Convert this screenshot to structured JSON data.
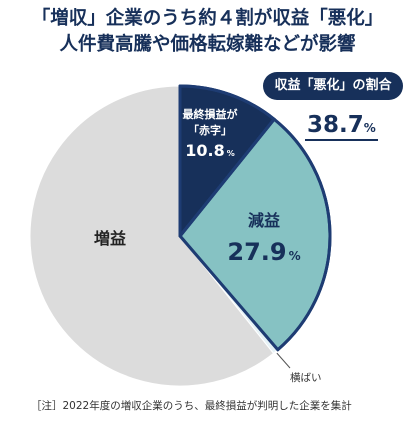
{
  "title_line1": "「増収」企業のうち約４割が収益「悪化」",
  "title_line2": "人件費高騰や価格転嫁難などが影響",
  "badge": "収益「悪化」の割合",
  "deterioration_share": {
    "value": "38.7",
    "unit": "%"
  },
  "footnote": "［注］2022年度の増収企業のうち、最終損益が判明した企業を集計",
  "colors": {
    "navy": "#17305a",
    "teal": "#86c2c3",
    "gray": "#dcdcdc",
    "outline": "#1e3c73"
  },
  "chart_data": {
    "type": "pie",
    "unit": "%",
    "slices": [
      {
        "label": "最終損益が「赤字」",
        "label_lines": [
          "最終損益が",
          "「赤字」"
        ],
        "value": 10.8,
        "value_text": "10.8",
        "color": "#17305a"
      },
      {
        "label": "減益",
        "label_lines": [
          "減益"
        ],
        "value": 27.9,
        "value_text": "27.9",
        "color": "#86c2c3"
      },
      {
        "label": "横ばい",
        "label_lines": [
          "横ばい"
        ],
        "value": 0.6,
        "value_text": "",
        "color": "#e6f2f6"
      },
      {
        "label": "増益",
        "label_lines": [
          "増益"
        ],
        "value": 60.7,
        "value_text": "",
        "color": "#dcdcdc"
      }
    ]
  }
}
